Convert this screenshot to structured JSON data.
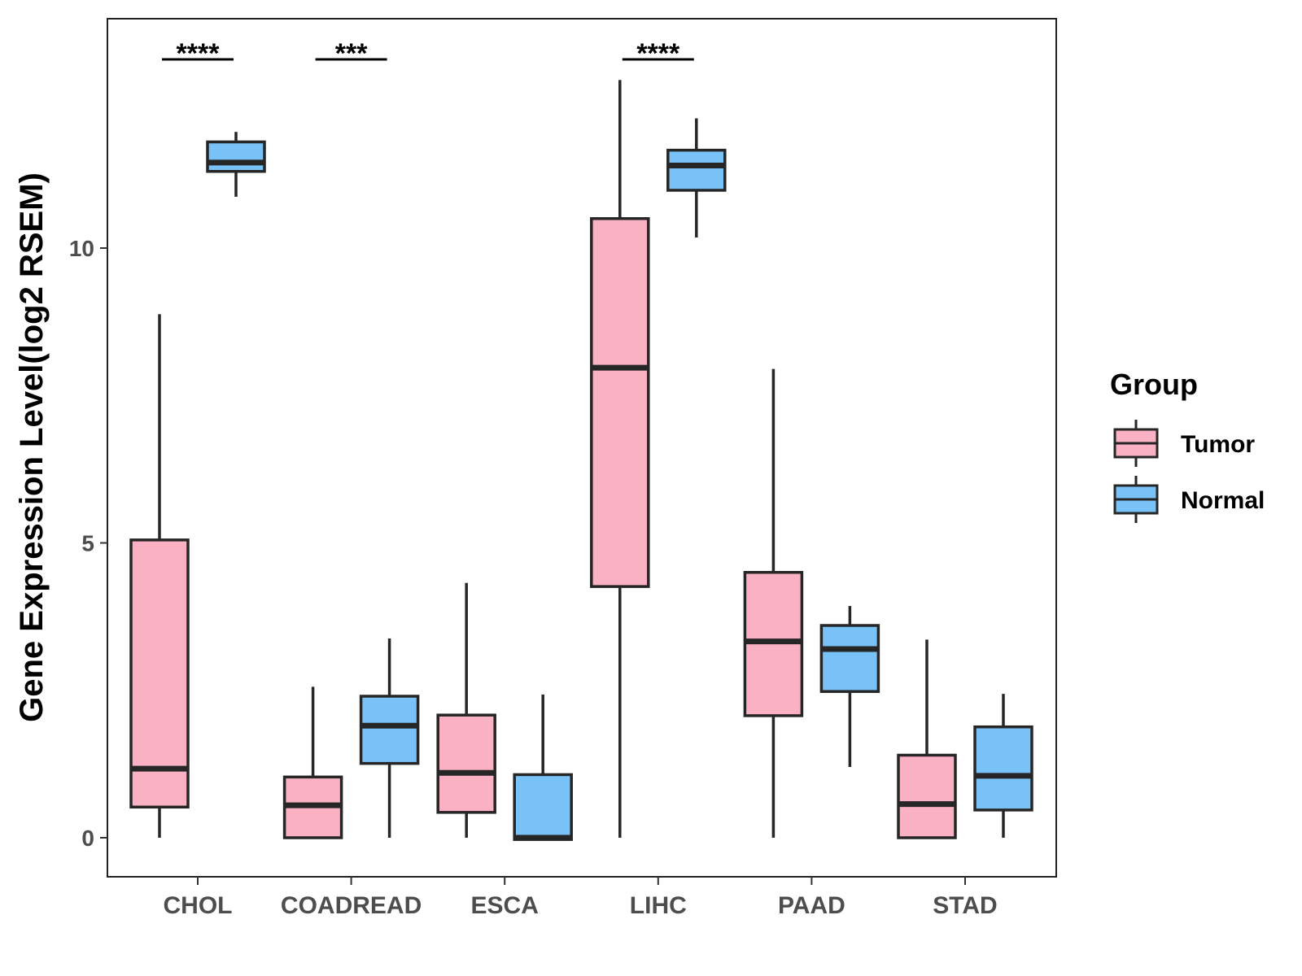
{
  "chart_data": {
    "type": "boxplot",
    "title": "",
    "xlabel": "",
    "ylabel": "Gene Expression Level(log2 RSEM)",
    "ylim": [
      -0.65,
      13.9
    ],
    "yticks": [
      0,
      5,
      10
    ],
    "categories": [
      "CHOL",
      "COADREAD",
      "ESCA",
      "LIHC",
      "PAAD",
      "STAD"
    ],
    "legend": {
      "title": "Group",
      "position": "right",
      "entries": [
        {
          "name": "Tumor",
          "color": "#fbb1c4"
        },
        {
          "name": "Normal",
          "color": "#79c2f7"
        }
      ]
    },
    "series": [
      {
        "name": "Tumor",
        "color": "#fbb1c4",
        "boxes": [
          {
            "category": "CHOL",
            "min": 0.0,
            "q1": 0.52,
            "median": 1.17,
            "q3": 5.05,
            "max": 8.88
          },
          {
            "category": "COADREAD",
            "min": 0.0,
            "q1": 0.0,
            "median": 0.55,
            "q3": 1.03,
            "max": 2.56
          },
          {
            "category": "ESCA",
            "min": 0.0,
            "q1": 0.43,
            "median": 1.1,
            "q3": 2.08,
            "max": 4.32
          },
          {
            "category": "LIHC",
            "min": 0.0,
            "q1": 4.26,
            "median": 7.97,
            "q3": 10.5,
            "max": 12.85
          },
          {
            "category": "PAAD",
            "min": 0.0,
            "q1": 2.07,
            "median": 3.33,
            "q3": 4.5,
            "max": 7.95
          },
          {
            "category": "STAD",
            "min": 0.0,
            "q1": 0.0,
            "median": 0.57,
            "q3": 1.4,
            "max": 3.36
          }
        ]
      },
      {
        "name": "Normal",
        "color": "#79c2f7",
        "boxes": [
          {
            "category": "CHOL",
            "min": 10.87,
            "q1": 11.3,
            "median": 11.45,
            "q3": 11.8,
            "max": 11.97
          },
          {
            "category": "COADREAD",
            "min": 0.0,
            "q1": 1.26,
            "median": 1.9,
            "q3": 2.4,
            "max": 3.38
          },
          {
            "category": "ESCA",
            "min": -0.03,
            "q1": -0.03,
            "median": 0.0,
            "q3": 1.07,
            "max": 2.43
          },
          {
            "category": "LIHC",
            "min": 10.18,
            "q1": 10.98,
            "median": 11.4,
            "q3": 11.66,
            "max": 12.2
          },
          {
            "category": "PAAD",
            "min": 1.2,
            "q1": 2.48,
            "median": 3.2,
            "q3": 3.6,
            "max": 3.93
          },
          {
            "category": "STAD",
            "min": 0.0,
            "q1": 0.47,
            "median": 1.05,
            "q3": 1.88,
            "max": 2.44
          }
        ]
      }
    ],
    "annotations": [
      {
        "category": "CHOL",
        "label": "****",
        "y": 13.2
      },
      {
        "category": "COADREAD",
        "label": "***",
        "y": 13.2
      },
      {
        "category": "LIHC",
        "label": "****",
        "y": 13.2
      }
    ]
  }
}
